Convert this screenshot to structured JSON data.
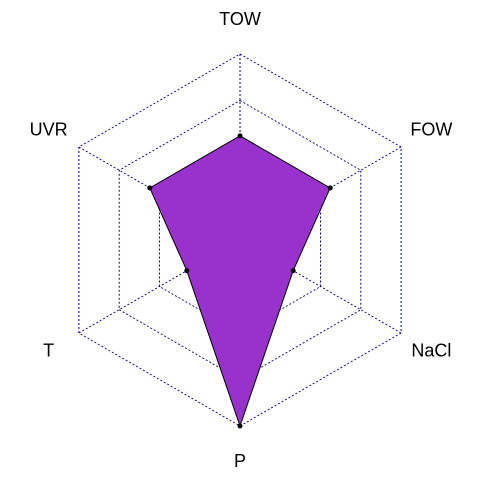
{
  "chart_data": {
    "type": "radar",
    "axes": [
      "TOW",
      "FOW",
      "NaCl",
      "P",
      "T",
      "UVR"
    ],
    "values": [
      0.56,
      0.56,
      0.33,
      1.0,
      0.33,
      0.56
    ],
    "range": [
      0,
      1
    ],
    "grid_levels": 4,
    "grid": true,
    "legend": "none",
    "fill_color": "#9932CC",
    "grid_color": "#00008B",
    "outline_color": "#000000"
  }
}
